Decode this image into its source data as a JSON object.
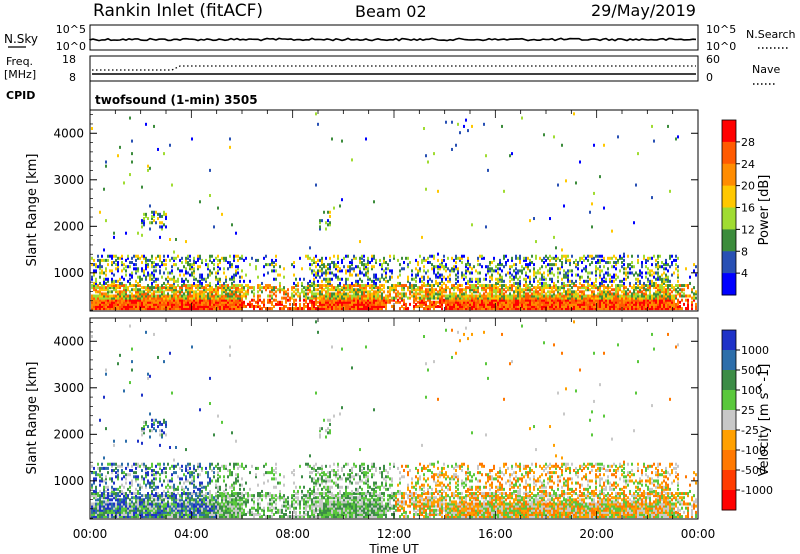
{
  "header": {
    "station": "Rankin Inlet (fitACF)",
    "beam": "Beam 02",
    "date": "29/May/2019"
  },
  "sky_panel": {
    "label": "N.Sky",
    "right_label": "N.Search",
    "ticks_left": [
      "10^5",
      "10^0"
    ],
    "ticks_right": [
      "10^5",
      "10^0"
    ]
  },
  "freq_panel": {
    "label_line1": "Freq.",
    "label_line2": "[MHz]",
    "right_label": "Nave",
    "ticks_left": [
      "18",
      "8"
    ],
    "ticks_right": [
      "60",
      "0"
    ]
  },
  "cpid": {
    "label": "CPID",
    "text": "twofsound (1-min) 3505"
  },
  "time_axis": {
    "labels": [
      "00:00",
      "04:00",
      "08:00",
      "12:00",
      "16:00",
      "20:00",
      "00:00"
    ],
    "title": "Time UT"
  },
  "chart_data": [
    {
      "type": "heatmap",
      "name": "power",
      "ylabel": "Slant Range [km]",
      "ylim": [
        180,
        4500
      ],
      "yticks": [
        "4000",
        "3000",
        "2000",
        "1000"
      ],
      "xlim_hours": [
        0,
        24
      ],
      "colorbar": {
        "label": "Power [dB]",
        "ticks": [
          "28",
          "24",
          "20",
          "16",
          "12",
          "8",
          "4"
        ],
        "colors": [
          "#ff0000",
          "#ff5a00",
          "#ff8c00",
          "#ffc800",
          "#a0dc32",
          "#3c8c3c",
          "#2850b4",
          "#0000ff"
        ]
      }
    },
    {
      "type": "heatmap",
      "name": "velocity",
      "ylabel": "Slant Range [km]",
      "ylim": [
        180,
        4500
      ],
      "yticks": [
        "4000",
        "3000",
        "2000",
        "1000"
      ],
      "xlim_hours": [
        0,
        24
      ],
      "colorbar": {
        "label": "Velocity [m s^-1]",
        "ticks": [
          "1000",
          "500",
          "100",
          "25",
          "-25",
          "-100",
          "-500",
          "-1000"
        ],
        "colors": [
          "#1e32c8",
          "#2d6eaa",
          "#3c8c46",
          "#5ac83c",
          "#c8c8c8",
          "#ffa000",
          "#ff7800",
          "#ff3c00",
          "#ff0000"
        ]
      }
    }
  ]
}
